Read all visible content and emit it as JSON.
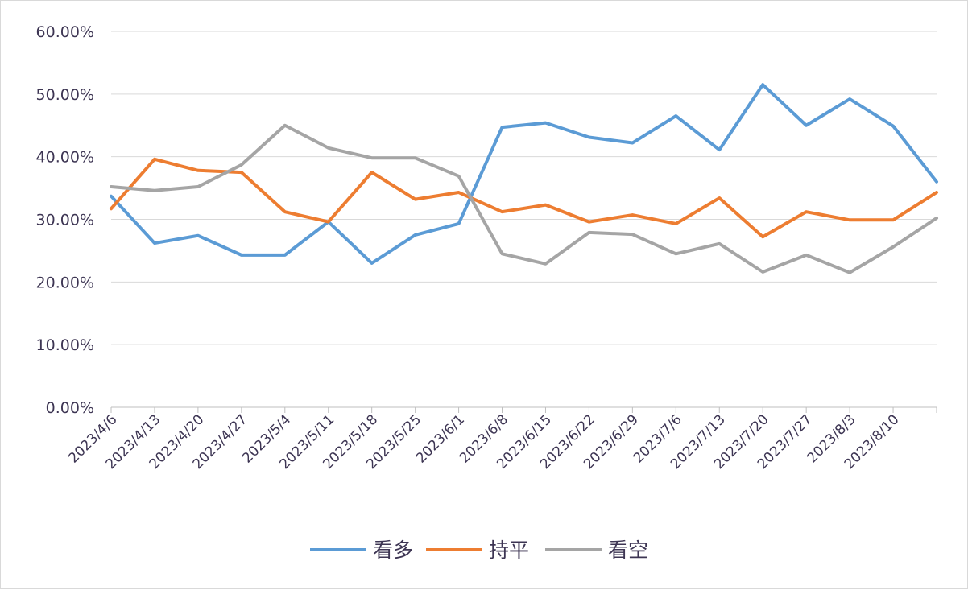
{
  "chart_data": {
    "type": "line",
    "title": "",
    "xlabel": "",
    "ylabel": "",
    "ylim": [
      0,
      60
    ],
    "yticks": [
      "0.00%",
      "10.00%",
      "20.00%",
      "30.00%",
      "40.00%",
      "50.00%",
      "60.00%"
    ],
    "grid": true,
    "legend_position": "bottom",
    "categories": [
      "2023/4/6",
      "2023/4/13",
      "2023/4/20",
      "2023/4/27",
      "2023/5/4",
      "2023/5/11",
      "2023/5/18",
      "2023/5/25",
      "2023/6/1",
      "2023/6/8",
      "2023/6/15",
      "2023/6/22",
      "2023/6/29",
      "2023/7/6",
      "2023/7/13",
      "2023/7/20",
      "2023/7/27",
      "2023/8/3",
      "2023/8/10",
      ""
    ],
    "series": [
      {
        "name": "看多",
        "color": "#5b9bd5",
        "values": [
          33.7,
          26.2,
          27.4,
          24.3,
          24.3,
          29.6,
          23.0,
          27.5,
          29.3,
          44.7,
          45.4,
          43.1,
          42.2,
          46.5,
          41.1,
          51.5,
          45.0,
          49.2,
          44.9,
          36.0
        ]
      },
      {
        "name": "持平",
        "color": "#ed7d31",
        "values": [
          31.7,
          39.6,
          37.8,
          37.5,
          31.2,
          29.6,
          37.5,
          33.2,
          34.3,
          31.2,
          32.3,
          29.6,
          30.7,
          29.3,
          33.4,
          27.2,
          31.2,
          29.9,
          29.9,
          34.3
        ]
      },
      {
        "name": "看空",
        "color": "#a5a5a5",
        "values": [
          35.2,
          34.6,
          35.2,
          38.7,
          45.0,
          41.4,
          39.8,
          39.8,
          36.9,
          24.5,
          22.9,
          27.9,
          27.6,
          24.5,
          26.1,
          21.6,
          24.3,
          21.5,
          25.6,
          30.2
        ]
      }
    ]
  }
}
